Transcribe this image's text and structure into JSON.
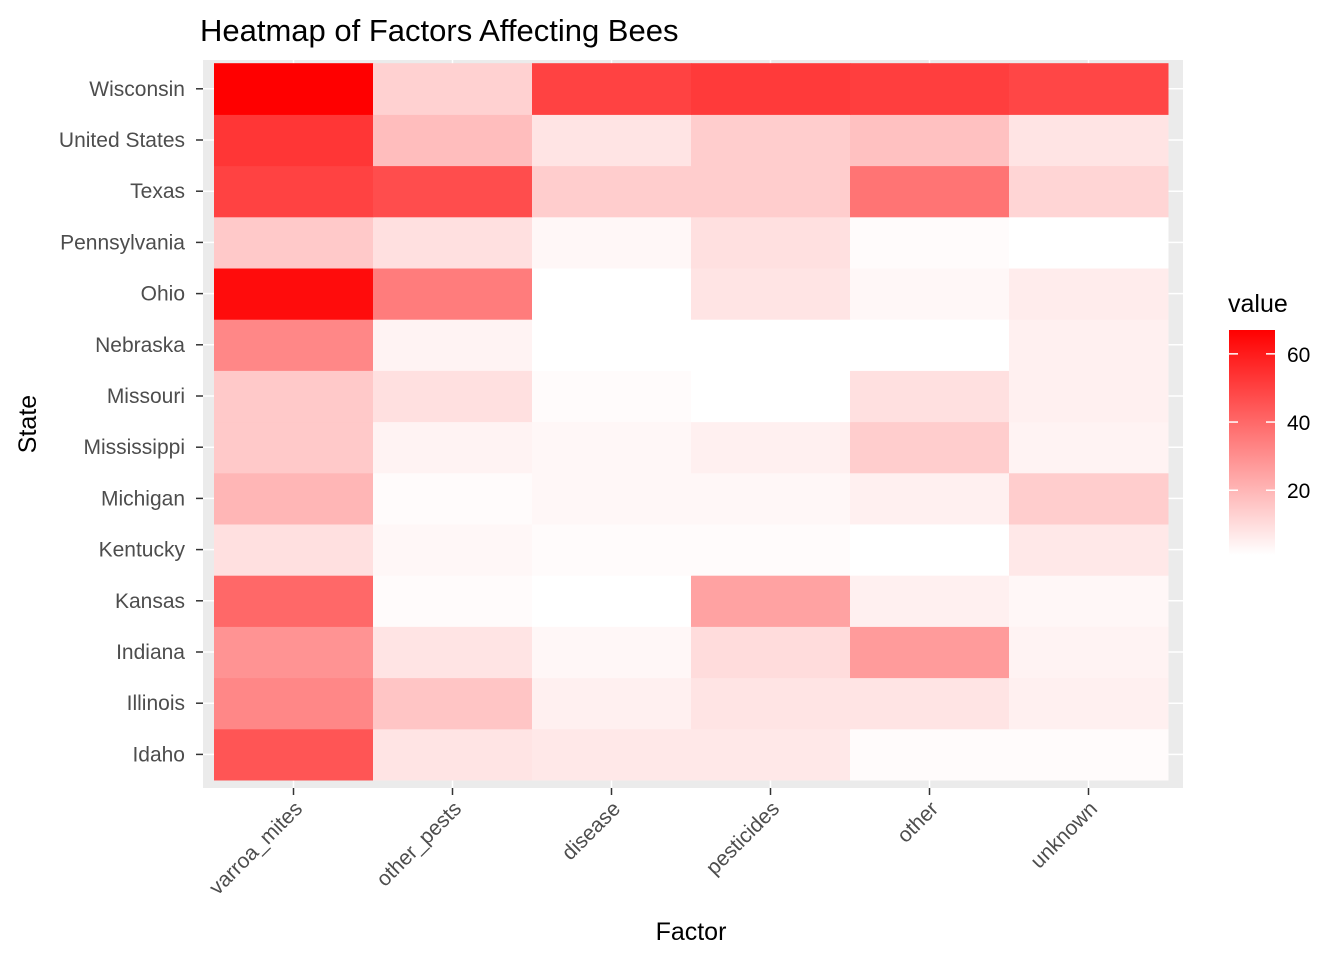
{
  "chart_data": {
    "type": "heatmap",
    "title": "Heatmap of Factors Affecting Bees",
    "xlabel": "Factor",
    "ylabel": "State",
    "x_categories": [
      "varroa_mites",
      "other_pests",
      "disease",
      "pesticides",
      "other",
      "unknown"
    ],
    "y_categories": [
      "Idaho",
      "Illinois",
      "Indiana",
      "Kansas",
      "Kentucky",
      "Michigan",
      "Mississippi",
      "Missouri",
      "Nebraska",
      "Ohio",
      "Pennsylvania",
      "Texas",
      "United States",
      "Wisconsin"
    ],
    "values": [
      [
        45,
        8,
        7,
        7,
        2,
        2
      ],
      [
        32,
        16,
        5,
        8,
        8,
        5
      ],
      [
        29,
        8,
        3,
        10,
        27,
        4
      ],
      [
        40,
        2,
        1,
        25,
        5,
        3
      ],
      [
        9,
        3,
        2,
        2,
        1,
        7
      ],
      [
        20,
        2,
        3,
        3,
        5,
        14
      ],
      [
        15,
        4,
        3,
        5,
        14,
        4
      ],
      [
        15,
        9,
        2,
        1,
        9,
        5
      ],
      [
        32,
        4,
        1,
        1,
        1,
        5
      ],
      [
        64,
        35,
        1,
        8,
        3,
        6
      ],
      [
        15,
        9,
        3,
        9,
        2,
        1
      ],
      [
        50,
        47,
        14,
        14,
        37,
        12
      ],
      [
        53,
        18,
        8,
        14,
        17,
        8
      ],
      [
        67,
        13,
        50,
        52,
        51,
        49
      ]
    ],
    "colorbar": {
      "title": "value",
      "ticks": [
        20,
        40,
        60
      ],
      "range": [
        1,
        67
      ],
      "low_color": "#ffffff",
      "high_color": "#ff0000"
    },
    "panel_background": "#ebebeb",
    "grid": true,
    "legend_position": "right"
  }
}
